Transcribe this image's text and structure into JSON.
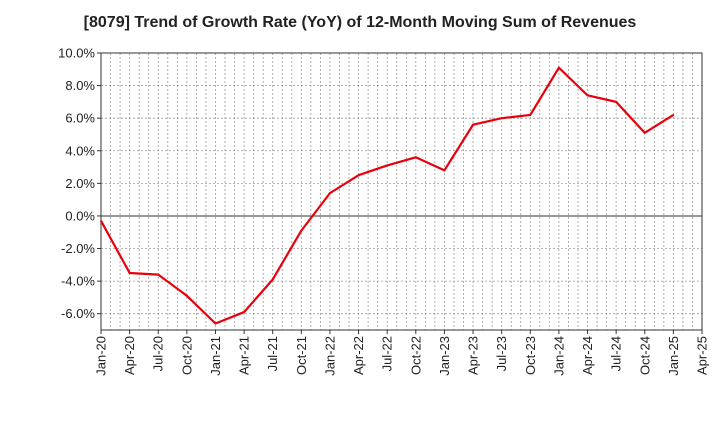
{
  "chart_data": {
    "type": "line",
    "title": "[8079]  Trend of Growth Rate (YoY) of 12-Month Moving Sum of Revenues",
    "xlabel": "",
    "ylabel": "",
    "x_ticks": [
      "Jan-20",
      "Apr-20",
      "Jul-20",
      "Oct-20",
      "Jan-21",
      "Apr-21",
      "Jul-21",
      "Oct-21",
      "Jan-22",
      "Apr-22",
      "Jul-22",
      "Oct-22",
      "Jan-23",
      "Apr-23",
      "Jul-23",
      "Oct-23",
      "Jan-24",
      "Apr-24",
      "Jul-24",
      "Oct-24",
      "Jan-25",
      "Apr-25"
    ],
    "y_ticks": [
      "10.0%",
      "8.0%",
      "6.0%",
      "4.0%",
      "2.0%",
      "0.0%",
      "-2.0%",
      "-4.0%",
      "-6.0%"
    ],
    "y_tick_values": [
      10,
      8,
      6,
      4,
      2,
      0,
      -2,
      -4,
      -6
    ],
    "ylim": [
      -7,
      10
    ],
    "grid": true,
    "series": [
      {
        "color": "#e8000b",
        "x": [
          "Jan-20",
          "Apr-20",
          "Jul-20",
          "Oct-20",
          "Jan-21",
          "Apr-21",
          "Jul-21",
          "Oct-21",
          "Jan-22",
          "Apr-22",
          "Jul-22",
          "Oct-22",
          "Jan-23",
          "Apr-23",
          "Jul-23",
          "Oct-23",
          "Jan-24",
          "Apr-24",
          "Jul-24",
          "Oct-24",
          "Jan-25"
        ],
        "values": [
          -0.3,
          -3.5,
          -3.6,
          -4.9,
          -6.6,
          -5.9,
          -3.9,
          -0.9,
          1.4,
          2.5,
          3.1,
          3.6,
          2.8,
          5.6,
          6.0,
          6.2,
          9.1,
          7.4,
          7.0,
          5.1,
          6.2
        ]
      }
    ]
  }
}
